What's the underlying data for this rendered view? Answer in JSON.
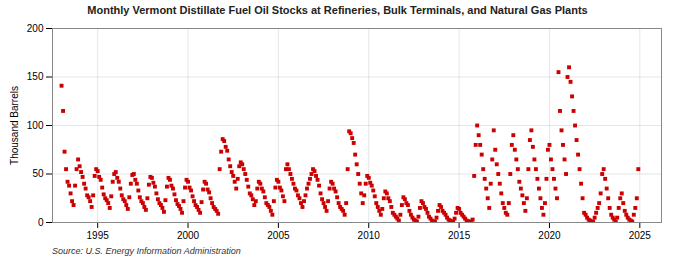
{
  "chart_data": {
    "type": "scatter",
    "title": "Monthly Vermont Distillate Fuel Oil Stocks at Refineries, Bulk Terminals, and Natural Gas Plants",
    "ylabel": "Thousand Barrels",
    "annotations": [
      "Source: U.S. Energy Information Administration"
    ],
    "color": "#cc0000",
    "marker": "square",
    "grid": true,
    "xlim": [
      1992.5,
      2026.2
    ],
    "ylim": [
      0,
      200
    ],
    "xticks": [
      1995,
      2000,
      2005,
      2010,
      2015,
      2020,
      2025
    ],
    "yticks": [
      0,
      50,
      100,
      150,
      200
    ],
    "x": [
      1993.0,
      1993.083,
      1993.167,
      1993.25,
      1993.333,
      1993.417,
      1993.5,
      1993.583,
      1993.667,
      1993.75,
      1993.833,
      1993.917,
      1994.0,
      1994.083,
      1994.167,
      1994.25,
      1994.333,
      1994.417,
      1994.5,
      1994.583,
      1994.667,
      1994.75,
      1994.833,
      1994.917,
      1995.0,
      1995.083,
      1995.167,
      1995.25,
      1995.333,
      1995.417,
      1995.5,
      1995.583,
      1995.667,
      1995.75,
      1995.833,
      1995.917,
      1996.0,
      1996.083,
      1996.167,
      1996.25,
      1996.333,
      1996.417,
      1996.5,
      1996.583,
      1996.667,
      1996.75,
      1996.833,
      1996.917,
      1997.0,
      1997.083,
      1997.167,
      1997.25,
      1997.333,
      1997.417,
      1997.5,
      1997.583,
      1997.667,
      1997.75,
      1997.833,
      1997.917,
      1998.0,
      1998.083,
      1998.167,
      1998.25,
      1998.333,
      1998.417,
      1998.5,
      1998.583,
      1998.667,
      1998.75,
      1998.833,
      1998.917,
      1999.0,
      1999.083,
      1999.167,
      1999.25,
      1999.333,
      1999.417,
      1999.5,
      1999.583,
      1999.667,
      1999.75,
      1999.833,
      1999.917,
      2000.0,
      2000.083,
      2000.167,
      2000.25,
      2000.333,
      2000.417,
      2000.5,
      2000.583,
      2000.667,
      2000.75,
      2000.833,
      2000.917,
      2001.0,
      2001.083,
      2001.167,
      2001.25,
      2001.333,
      2001.417,
      2001.5,
      2001.583,
      2001.667,
      2001.75,
      2001.833,
      2001.917,
      2002.0,
      2002.083,
      2002.167,
      2002.25,
      2002.333,
      2002.417,
      2002.5,
      2002.583,
      2002.667,
      2002.75,
      2002.833,
      2002.917,
      2003.0,
      2003.083,
      2003.167,
      2003.25,
      2003.333,
      2003.417,
      2003.5,
      2003.583,
      2003.667,
      2003.75,
      2003.833,
      2003.917,
      2004.0,
      2004.083,
      2004.167,
      2004.25,
      2004.333,
      2004.417,
      2004.5,
      2004.583,
      2004.667,
      2004.75,
      2004.833,
      2004.917,
      2005.0,
      2005.083,
      2005.167,
      2005.25,
      2005.333,
      2005.417,
      2005.5,
      2005.583,
      2005.667,
      2005.75,
      2005.833,
      2005.917,
      2006.0,
      2006.083,
      2006.167,
      2006.25,
      2006.333,
      2006.417,
      2006.5,
      2006.583,
      2006.667,
      2006.75,
      2006.833,
      2006.917,
      2007.0,
      2007.083,
      2007.167,
      2007.25,
      2007.333,
      2007.417,
      2007.5,
      2007.583,
      2007.667,
      2007.75,
      2007.833,
      2007.917,
      2008.0,
      2008.083,
      2008.167,
      2008.25,
      2008.333,
      2008.417,
      2008.5,
      2008.583,
      2008.667,
      2008.75,
      2008.833,
      2008.917,
      2009.0,
      2009.083,
      2009.167,
      2009.25,
      2009.333,
      2009.417,
      2009.5,
      2009.583,
      2009.667,
      2009.75,
      2009.833,
      2009.917,
      2010.0,
      2010.083,
      2010.167,
      2010.25,
      2010.333,
      2010.417,
      2010.5,
      2010.583,
      2010.667,
      2010.75,
      2010.833,
      2010.917,
      2011.0,
      2011.083,
      2011.167,
      2011.25,
      2011.333,
      2011.417,
      2011.5,
      2011.583,
      2011.667,
      2011.75,
      2011.833,
      2011.917,
      2012.0,
      2012.083,
      2012.167,
      2012.25,
      2012.333,
      2012.417,
      2012.5,
      2012.583,
      2012.667,
      2012.75,
      2012.833,
      2012.917,
      2013.0,
      2013.083,
      2013.167,
      2013.25,
      2013.333,
      2013.417,
      2013.5,
      2013.583,
      2013.667,
      2013.75,
      2013.833,
      2013.917,
      2014.0,
      2014.083,
      2014.167,
      2014.25,
      2014.333,
      2014.417,
      2014.5,
      2014.583,
      2014.667,
      2014.75,
      2014.833,
      2014.917,
      2015.0,
      2015.083,
      2015.167,
      2015.25,
      2015.333,
      2015.417,
      2015.5,
      2015.583,
      2015.667,
      2015.75,
      2015.833,
      2015.917,
      2016.0,
      2016.083,
      2016.167,
      2016.25,
      2016.333,
      2016.417,
      2016.5,
      2016.583,
      2016.667,
      2016.75,
      2016.833,
      2016.917,
      2017.0,
      2017.083,
      2017.167,
      2017.25,
      2017.333,
      2017.417,
      2017.5,
      2017.583,
      2017.667,
      2017.75,
      2017.833,
      2017.917,
      2018.0,
      2018.083,
      2018.167,
      2018.25,
      2018.333,
      2018.417,
      2018.5,
      2018.583,
      2018.667,
      2018.75,
      2018.833,
      2018.917,
      2019.0,
      2019.083,
      2019.167,
      2019.25,
      2019.333,
      2019.417,
      2019.5,
      2019.583,
      2019.667,
      2019.75,
      2019.833,
      2019.917,
      2020.0,
      2020.083,
      2020.167,
      2020.25,
      2020.333,
      2020.417,
      2020.5,
      2020.583,
      2020.667,
      2020.75,
      2020.833,
      2020.917,
      2021.0,
      2021.083,
      2021.167,
      2021.25,
      2021.333,
      2021.417,
      2021.5,
      2021.583,
      2021.667,
      2021.75,
      2021.833,
      2021.917,
      2022.0,
      2022.083,
      2022.167,
      2022.25,
      2022.333,
      2022.417,
      2022.5,
      2022.583,
      2022.667,
      2022.75,
      2022.833,
      2022.917,
      2023.0,
      2023.083,
      2023.167,
      2023.25,
      2023.333,
      2023.417,
      2023.5,
      2023.583,
      2023.667,
      2023.75,
      2023.833,
      2023.917,
      2024.0,
      2024.083,
      2024.167,
      2024.25,
      2024.333,
      2024.417,
      2024.5,
      2024.583,
      2024.667,
      2024.75,
      2024.833,
      2024.917
    ],
    "values": [
      141,
      115,
      73,
      55,
      42,
      38,
      30,
      22,
      18,
      38,
      55,
      65,
      58,
      52,
      47,
      40,
      35,
      28,
      26,
      22,
      16,
      28,
      48,
      55,
      53,
      47,
      44,
      36,
      29,
      25,
      23,
      20,
      15,
      27,
      42,
      50,
      52,
      46,
      42,
      35,
      28,
      24,
      22,
      18,
      14,
      26,
      40,
      49,
      50,
      44,
      40,
      33,
      26,
      22,
      20,
      16,
      13,
      25,
      39,
      47,
      46,
      41,
      37,
      30,
      24,
      20,
      18,
      15,
      11,
      23,
      37,
      46,
      44,
      38,
      35,
      29,
      23,
      19,
      17,
      14,
      10,
      22,
      36,
      44,
      42,
      36,
      33,
      27,
      22,
      18,
      16,
      13,
      10,
      21,
      34,
      42,
      40,
      34,
      31,
      25,
      20,
      16,
      14,
      12,
      9,
      55,
      73,
      86,
      84,
      78,
      74,
      65,
      58,
      52,
      48,
      42,
      35,
      45,
      58,
      62,
      60,
      55,
      50,
      44,
      37,
      30,
      28,
      24,
      18,
      22,
      35,
      42,
      40,
      35,
      32,
      26,
      20,
      18,
      16,
      12,
      8,
      22,
      36,
      44,
      42,
      36,
      33,
      27,
      22,
      55,
      60,
      55,
      50,
      45,
      40,
      35,
      33,
      28,
      25,
      20,
      16,
      22,
      28,
      35,
      40,
      45,
      50,
      55,
      53,
      48,
      44,
      38,
      30,
      24,
      20,
      16,
      12,
      22,
      35,
      42,
      40,
      35,
      32,
      26,
      20,
      16,
      14,
      12,
      8,
      20,
      55,
      94,
      92,
      87,
      82,
      70,
      60,
      50,
      40,
      30,
      20,
      28,
      40,
      48,
      46,
      41,
      38,
      33,
      27,
      20,
      16,
      12,
      8,
      14,
      25,
      32,
      30,
      25,
      22,
      16,
      10,
      8,
      6,
      4,
      2,
      8,
      18,
      26,
      24,
      20,
      18,
      12,
      8,
      5,
      3,
      2,
      1,
      6,
      15,
      22,
      20,
      16,
      14,
      10,
      6,
      4,
      2,
      1,
      1,
      5,
      12,
      18,
      16,
      12,
      10,
      8,
      5,
      3,
      2,
      1,
      1,
      4,
      10,
      15,
      14,
      10,
      8,
      6,
      4,
      2,
      1,
      1,
      1,
      3,
      48,
      80,
      100,
      90,
      80,
      70,
      55,
      45,
      35,
      25,
      15,
      40,
      65,
      95,
      75,
      60,
      50,
      40,
      30,
      20,
      15,
      10,
      8,
      20,
      50,
      80,
      90,
      75,
      65,
      55,
      42,
      35,
      28,
      20,
      12,
      25,
      55,
      85,
      95,
      78,
      65,
      55,
      45,
      35,
      25,
      15,
      8,
      20,
      45,
      75,
      80,
      65,
      55,
      45,
      35,
      25,
      155,
      115,
      95,
      80,
      65,
      50,
      150,
      160,
      145,
      130,
      115,
      100,
      85,
      70,
      55,
      40,
      25,
      10,
      8,
      5,
      3,
      2,
      1,
      1,
      5,
      10,
      15,
      20,
      30,
      50,
      55,
      45,
      35,
      25,
      15,
      8,
      5,
      3,
      1,
      5,
      15,
      25,
      30,
      20,
      12,
      8,
      5,
      3,
      2,
      1,
      8,
      15,
      25,
      55
    ]
  }
}
